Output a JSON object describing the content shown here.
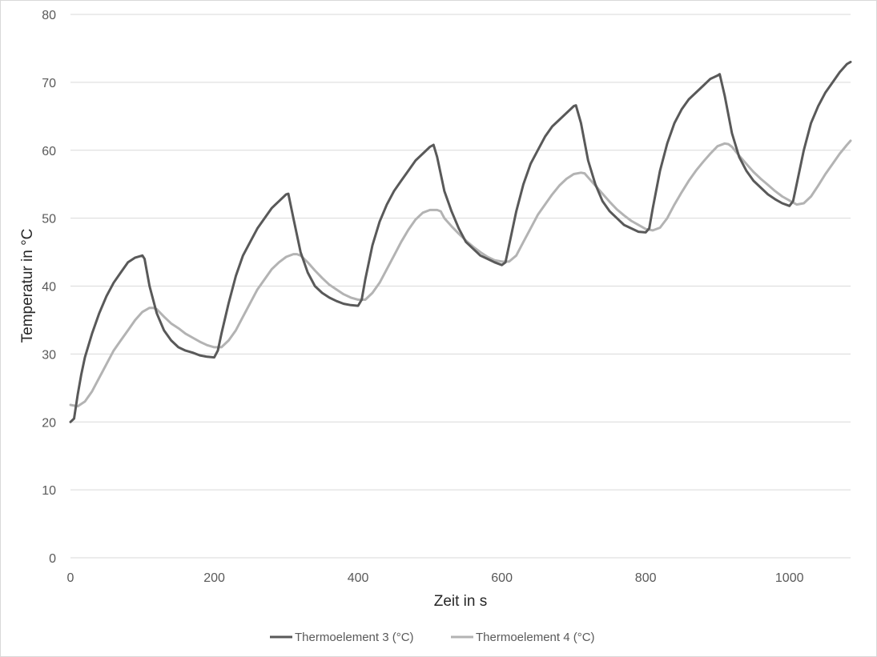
{
  "chart_data": {
    "type": "line",
    "title": "",
    "xlabel": "Zeit in s",
    "ylabel": "Temperatur in °C",
    "xlim": [
      0,
      1085
    ],
    "ylim": [
      0,
      80
    ],
    "xticks": [
      0,
      200,
      400,
      600,
      800,
      1000
    ],
    "yticks": [
      0,
      10,
      20,
      30,
      40,
      50,
      60,
      70,
      80
    ],
    "grid": "horizontal",
    "legend_position": "bottom",
    "colors": {
      "series1": "#595959",
      "series2": "#b3b3b3",
      "grid": "#d9d9d9"
    },
    "series": [
      {
        "name": "Thermoelement 3 (°C)",
        "x": [
          0,
          5,
          10,
          15,
          20,
          30,
          40,
          50,
          60,
          70,
          80,
          90,
          100,
          103,
          110,
          120,
          130,
          140,
          150,
          160,
          170,
          180,
          190,
          200,
          205,
          210,
          220,
          230,
          240,
          250,
          260,
          270,
          280,
          290,
          300,
          303,
          310,
          320,
          330,
          340,
          350,
          360,
          370,
          380,
          390,
          400,
          405,
          410,
          420,
          430,
          440,
          450,
          460,
          470,
          480,
          490,
          500,
          505,
          510,
          520,
          530,
          540,
          550,
          560,
          570,
          580,
          590,
          600,
          605,
          610,
          620,
          630,
          640,
          650,
          660,
          670,
          680,
          690,
          700,
          703,
          710,
          720,
          730,
          740,
          750,
          760,
          770,
          780,
          790,
          800,
          805,
          810,
          820,
          830,
          840,
          850,
          860,
          870,
          880,
          890,
          900,
          903,
          910,
          920,
          930,
          940,
          950,
          960,
          970,
          980,
          990,
          1000,
          1005,
          1010,
          1020,
          1030,
          1040,
          1050,
          1060,
          1070,
          1080,
          1085
        ],
        "values": [
          20,
          20.5,
          24,
          27,
          29.5,
          33,
          36,
          38.5,
          40.5,
          42,
          43.5,
          44.2,
          44.5,
          44,
          40,
          36,
          33.5,
          32,
          31,
          30.5,
          30.2,
          29.8,
          29.6,
          29.5,
          30.5,
          33,
          37.5,
          41.5,
          44.5,
          46.5,
          48.5,
          50,
          51.5,
          52.5,
          53.5,
          53.6,
          50,
          45,
          42,
          40,
          39,
          38.3,
          37.8,
          37.4,
          37.2,
          37.1,
          38,
          41,
          46,
          49.5,
          52,
          54,
          55.5,
          57,
          58.5,
          59.5,
          60.5,
          60.8,
          59,
          54,
          51,
          48.5,
          46.5,
          45.5,
          44.5,
          44,
          43.5,
          43.1,
          43.5,
          46,
          51,
          55,
          58,
          60,
          62,
          63.5,
          64.5,
          65.5,
          66.5,
          66.6,
          64,
          58.5,
          55,
          52.5,
          51,
          50,
          49,
          48.5,
          48,
          47.9,
          48.5,
          51.5,
          57,
          61,
          64,
          66,
          67.5,
          68.5,
          69.5,
          70.5,
          71,
          71.2,
          68,
          62.5,
          59,
          57,
          55.5,
          54.5,
          53.5,
          52.8,
          52.2,
          51.8,
          52.5,
          55,
          60,
          64,
          66.5,
          68.5,
          70,
          71.5,
          72.7,
          73
        ]
      },
      {
        "name": "Thermoelement 4 (°C)",
        "x": [
          0,
          10,
          20,
          30,
          40,
          50,
          60,
          70,
          80,
          90,
          100,
          110,
          115,
          120,
          130,
          140,
          150,
          160,
          170,
          180,
          190,
          200,
          210,
          220,
          230,
          240,
          250,
          260,
          270,
          280,
          290,
          300,
          310,
          315,
          320,
          330,
          340,
          350,
          360,
          370,
          380,
          390,
          400,
          410,
          420,
          430,
          440,
          450,
          460,
          470,
          480,
          490,
          500,
          510,
          515,
          520,
          530,
          540,
          550,
          560,
          570,
          580,
          590,
          600,
          610,
          620,
          630,
          640,
          650,
          660,
          670,
          680,
          690,
          700,
          710,
          715,
          720,
          730,
          740,
          750,
          760,
          770,
          780,
          790,
          800,
          810,
          820,
          830,
          840,
          850,
          860,
          870,
          880,
          890,
          900,
          910,
          915,
          920,
          930,
          940,
          950,
          960,
          970,
          980,
          990,
          1000,
          1010,
          1020,
          1030,
          1040,
          1050,
          1060,
          1070,
          1080,
          1085
        ],
        "values": [
          22.5,
          22.3,
          23,
          24.5,
          26.5,
          28.5,
          30.5,
          32,
          33.5,
          35,
          36.2,
          36.8,
          36.8,
          36.6,
          35.5,
          34.5,
          33.8,
          33,
          32.4,
          31.8,
          31.3,
          31,
          31,
          32,
          33.5,
          35.5,
          37.5,
          39.5,
          41,
          42.5,
          43.5,
          44.3,
          44.7,
          44.7,
          44.5,
          43.5,
          42.3,
          41.2,
          40.2,
          39.5,
          38.8,
          38.3,
          38,
          38,
          39,
          40.5,
          42.5,
          44.5,
          46.5,
          48.3,
          49.8,
          50.8,
          51.2,
          51.2,
          51,
          50,
          48.8,
          47.7,
          46.7,
          45.8,
          45,
          44.3,
          43.8,
          43.6,
          43.6,
          44.5,
          46.5,
          48.5,
          50.5,
          52,
          53.5,
          54.8,
          55.8,
          56.5,
          56.7,
          56.6,
          56,
          54.8,
          53.6,
          52.4,
          51.3,
          50.4,
          49.6,
          49,
          48.4,
          48.2,
          48.6,
          50,
          52,
          53.8,
          55.5,
          57,
          58.3,
          59.5,
          60.6,
          61,
          60.9,
          60.5,
          59.2,
          58,
          56.8,
          55.8,
          54.9,
          54,
          53.2,
          52.6,
          52,
          52.2,
          53.2,
          54.8,
          56.5,
          58,
          59.5,
          60.8,
          61.4
        ]
      }
    ]
  }
}
